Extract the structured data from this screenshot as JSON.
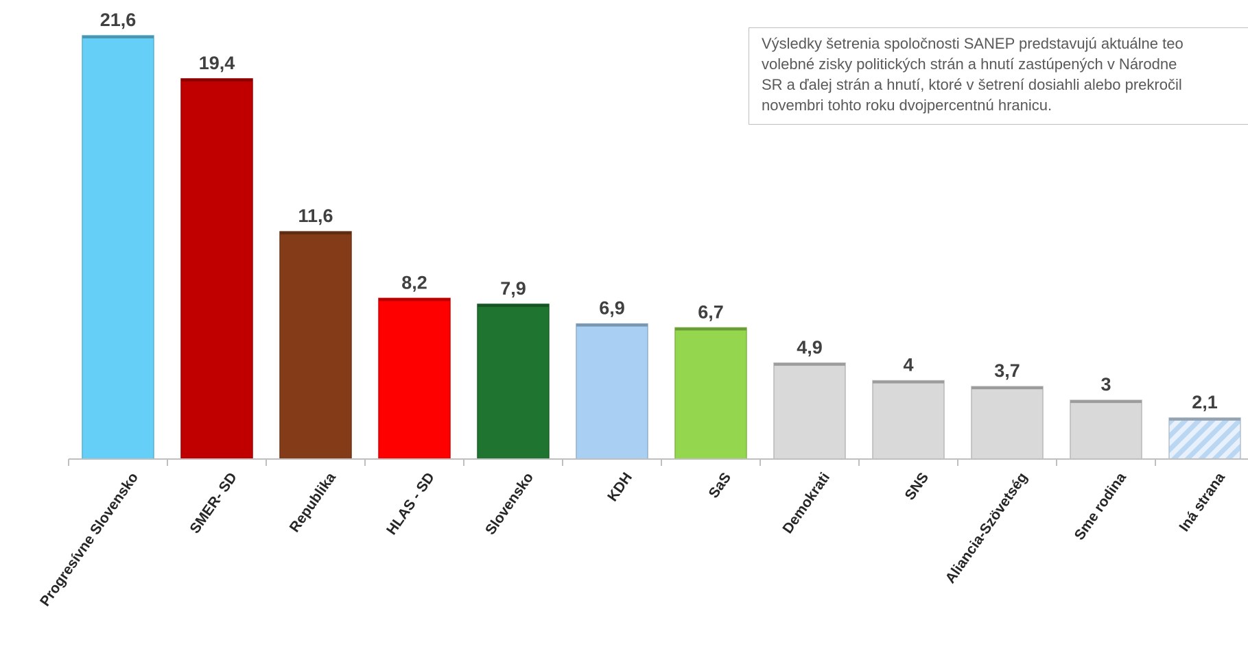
{
  "chart_data": {
    "type": "bar",
    "categories": [
      "Progresívne Slovensko",
      "SMER- SD",
      "Republika",
      "HLAS - SD",
      "Slovensko",
      "KDH",
      "SaS",
      "Demokrati",
      "SNS",
      "Aliancia-Szövetség",
      "Sme rodina",
      "Iná strana"
    ],
    "values": [
      21.6,
      19.4,
      11.6,
      8.2,
      7.9,
      6.9,
      6.7,
      4.9,
      4,
      3.7,
      3,
      2.1
    ],
    "value_labels": [
      "21,6",
      "19,4",
      "11,6",
      "8,2",
      "7,9",
      "6,9",
      "6,7",
      "4,9",
      "4",
      "3,7",
      "3",
      "2,1"
    ],
    "colors": [
      "#66cff7",
      "#c00000",
      "#843c18",
      "#fe0000",
      "#1f7430",
      "#a9d0f2",
      "#94d74f",
      "#d9d9d9",
      "#d9d9d9",
      "#d9d9d9",
      "#d9d9d9",
      "#cfe3f6"
    ],
    "patterned": [
      false,
      false,
      false,
      false,
      false,
      false,
      false,
      false,
      false,
      false,
      false,
      true
    ],
    "ylim": [
      0,
      21.6
    ],
    "grid": false,
    "title": "",
    "xlabel": "",
    "ylabel": ""
  },
  "note": {
    "text": "Výsledky šetrenia spoločnosti SANEP predstavujú aktuálne teo\nvolebné zisky politických strán a hnutí zastúpených v Národne\nSR a ďalej strán a hnutí, ktoré v šetrení dosiahli alebo prekročil\nnovembri tohto roku dvojpercentnú hranicu."
  }
}
